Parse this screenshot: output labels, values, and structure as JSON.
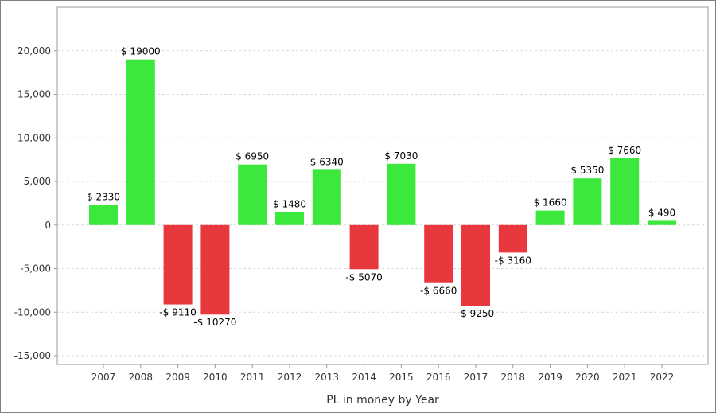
{
  "chart_data": {
    "type": "bar",
    "title": "",
    "xlabel": "PL in money by Year",
    "ylabel": "",
    "categories": [
      "2007",
      "2008",
      "2009",
      "2010",
      "2011",
      "2012",
      "2013",
      "2014",
      "2015",
      "2016",
      "2017",
      "2018",
      "2019",
      "2020",
      "2021",
      "2022"
    ],
    "values": [
      2330,
      19000,
      -9110,
      -10270,
      6950,
      1480,
      6340,
      -5070,
      7030,
      -6660,
      -9250,
      -3160,
      1660,
      5350,
      7660,
      490
    ],
    "data_labels": [
      "$ 2330",
      "$ 19000",
      "-$ 9110",
      "-$ 10270",
      "$ 6950",
      "$ 1480",
      "$ 6340",
      "-$ 5070",
      "$ 7030",
      "-$ 6660",
      "-$ 9250",
      "-$ 3160",
      "$ 1660",
      "$ 5350",
      "$ 7660",
      "$ 490"
    ],
    "ylim": [
      -16000,
      25000
    ],
    "yticks": [
      -15000,
      -10000,
      -5000,
      0,
      5000,
      10000,
      15000,
      20000
    ],
    "ytick_labels": [
      "-15,000",
      "-10,000",
      "-5,000",
      "0",
      "5,000",
      "10,000",
      "15,000",
      "20,000"
    ],
    "grid": true,
    "legend": "none",
    "colors": {
      "positive": "#3de83d",
      "negative": "#e8383d",
      "grid": "#d9d9d9",
      "axis": "#999999"
    }
  }
}
